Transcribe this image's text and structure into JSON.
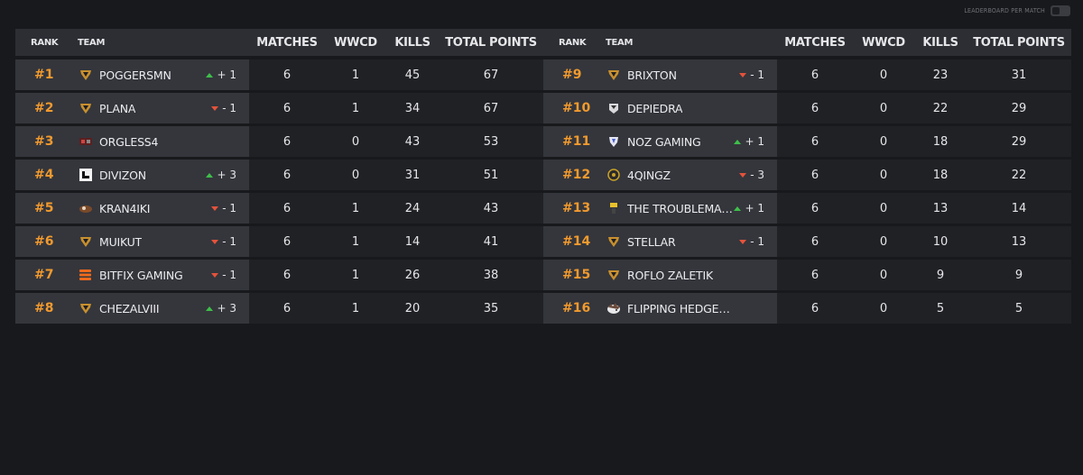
{
  "header": {
    "toggle_label": "LEADERBOARD PER MATCH"
  },
  "columns": {
    "rank": "RANK",
    "team": "TEAM",
    "matches": "MATCHES",
    "wwcd": "WWCD",
    "kills": "KILLS",
    "total": "TOTAL POINTS"
  },
  "colors": {
    "accent_rank": "#f29a2e",
    "up": "#3fbf4a",
    "down": "#e5523a",
    "background": "#18191c"
  },
  "left_rows": [
    {
      "rank": "#1",
      "team": "POGGERSMN",
      "logo": "gold-shield-logo",
      "dir": "up",
      "change": "+ 1",
      "matches": "6",
      "wwcd": "1",
      "kills": "45",
      "total": "67"
    },
    {
      "rank": "#2",
      "team": "PLANA",
      "logo": "gold-shield-logo",
      "dir": "down",
      "change": "- 1",
      "matches": "6",
      "wwcd": "1",
      "kills": "34",
      "total": "67"
    },
    {
      "rank": "#3",
      "team": "ORGLESS4",
      "logo": "orgless-logo",
      "dir": "",
      "change": "",
      "matches": "6",
      "wwcd": "0",
      "kills": "43",
      "total": "53"
    },
    {
      "rank": "#4",
      "team": "DIVIZON",
      "logo": "divizon-logo",
      "dir": "up",
      "change": "+ 3",
      "matches": "6",
      "wwcd": "0",
      "kills": "31",
      "total": "51"
    },
    {
      "rank": "#5",
      "team": "KRAN4IKI",
      "logo": "kran4iki-logo",
      "dir": "down",
      "change": "- 1",
      "matches": "6",
      "wwcd": "1",
      "kills": "24",
      "total": "43"
    },
    {
      "rank": "#6",
      "team": "MUIKUT",
      "logo": "gold-shield-logo",
      "dir": "down",
      "change": "- 1",
      "matches": "6",
      "wwcd": "1",
      "kills": "14",
      "total": "41"
    },
    {
      "rank": "#7",
      "team": "BITFIX GAMING",
      "logo": "bitfix-logo",
      "dir": "down",
      "change": "- 1",
      "matches": "6",
      "wwcd": "1",
      "kills": "26",
      "total": "38"
    },
    {
      "rank": "#8",
      "team": "CHEZALVIII",
      "logo": "gold-shield-logo",
      "dir": "up",
      "change": "+ 3",
      "matches": "6",
      "wwcd": "1",
      "kills": "20",
      "total": "35"
    }
  ],
  "right_rows": [
    {
      "rank": "#9",
      "team": "BRIXTON",
      "logo": "gold-shield-logo",
      "dir": "down",
      "change": "- 1",
      "matches": "6",
      "wwcd": "0",
      "kills": "23",
      "total": "31"
    },
    {
      "rank": "#10",
      "team": "DEPIEDRA",
      "logo": "depiedra-logo",
      "dir": "",
      "change": "",
      "matches": "6",
      "wwcd": "0",
      "kills": "22",
      "total": "29"
    },
    {
      "rank": "#11",
      "team": "NOZ GAMING",
      "logo": "noz-logo",
      "dir": "up",
      "change": "+ 1",
      "matches": "6",
      "wwcd": "0",
      "kills": "18",
      "total": "29"
    },
    {
      "rank": "#12",
      "team": "4QINGZ",
      "logo": "4qingz-logo",
      "dir": "down",
      "change": "- 3",
      "matches": "6",
      "wwcd": "0",
      "kills": "18",
      "total": "22"
    },
    {
      "rank": "#13",
      "team": "THE TROUBLEMAKE...",
      "logo": "troublemakers-logo",
      "dir": "up",
      "change": "+ 1",
      "matches": "6",
      "wwcd": "0",
      "kills": "13",
      "total": "14"
    },
    {
      "rank": "#14",
      "team": "STELLAR",
      "logo": "gold-shield-logo",
      "dir": "down",
      "change": "- 1",
      "matches": "6",
      "wwcd": "0",
      "kills": "10",
      "total": "13"
    },
    {
      "rank": "#15",
      "team": "ROFLO ZALETIK",
      "logo": "gold-shield-logo",
      "dir": "",
      "change": "",
      "matches": "6",
      "wwcd": "0",
      "kills": "9",
      "total": "9"
    },
    {
      "rank": "#16",
      "team": "FLIPPING HEDGEHOGS",
      "logo": "hedgehog-logo",
      "dir": "",
      "change": "",
      "matches": "6",
      "wwcd": "0",
      "kills": "5",
      "total": "5"
    }
  ]
}
